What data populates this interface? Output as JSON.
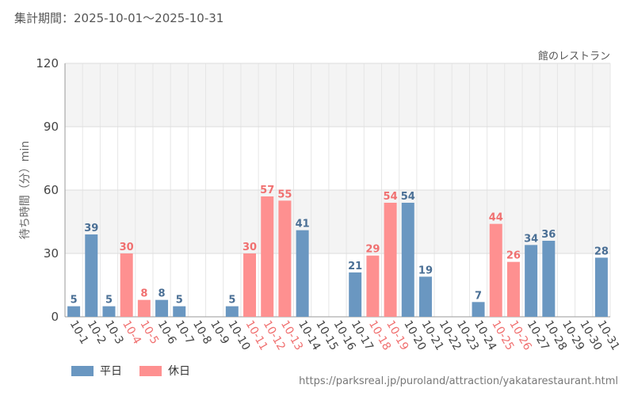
{
  "header": {
    "period_label": "集計期間：2025-10-01～2025-10-31"
  },
  "source_url": "https://parksreal.jp/puroland/attraction/yakatarestaurant.html",
  "colors": {
    "weekday": "#6a97c1",
    "holiday": "#fe9090",
    "weekday_label": "#4a6f95",
    "holiday_label": "#f07070"
  },
  "chart_data": {
    "type": "bar",
    "title": "館のレストラン",
    "ylabel": "待ち時間（分）min",
    "xlabel": "",
    "ylim": [
      0,
      120
    ],
    "yticks": [
      0,
      30,
      60,
      90,
      120
    ],
    "legend": [
      {
        "key": "weekday",
        "label": "平日"
      },
      {
        "key": "holiday",
        "label": "休日"
      }
    ],
    "categories": [
      "10-1",
      "10-2",
      "10-3",
      "10-4",
      "10-5",
      "10-6",
      "10-7",
      "10-8",
      "10-9",
      "10-10",
      "10-11",
      "10-12",
      "10-13",
      "10-14",
      "10-15",
      "10-16",
      "10-17",
      "10-18",
      "10-19",
      "10-20",
      "10-21",
      "10-22",
      "10-23",
      "10-24",
      "10-25",
      "10-26",
      "10-27",
      "10-28",
      "10-29",
      "10-30",
      "10-31"
    ],
    "values": [
      5,
      39,
      5,
      30,
      8,
      8,
      5,
      null,
      null,
      5,
      30,
      57,
      55,
      41,
      null,
      null,
      21,
      29,
      54,
      54,
      19,
      null,
      null,
      7,
      44,
      26,
      34,
      36,
      null,
      null,
      28
    ],
    "day_type": [
      "weekday",
      "weekday",
      "weekday",
      "holiday",
      "holiday",
      "weekday",
      "weekday",
      "weekday",
      "weekday",
      "weekday",
      "holiday",
      "holiday",
      "holiday",
      "weekday",
      "weekday",
      "weekday",
      "weekday",
      "holiday",
      "holiday",
      "weekday",
      "weekday",
      "weekday",
      "weekday",
      "weekday",
      "holiday",
      "holiday",
      "weekday",
      "weekday",
      "weekday",
      "weekday",
      "weekday"
    ]
  }
}
